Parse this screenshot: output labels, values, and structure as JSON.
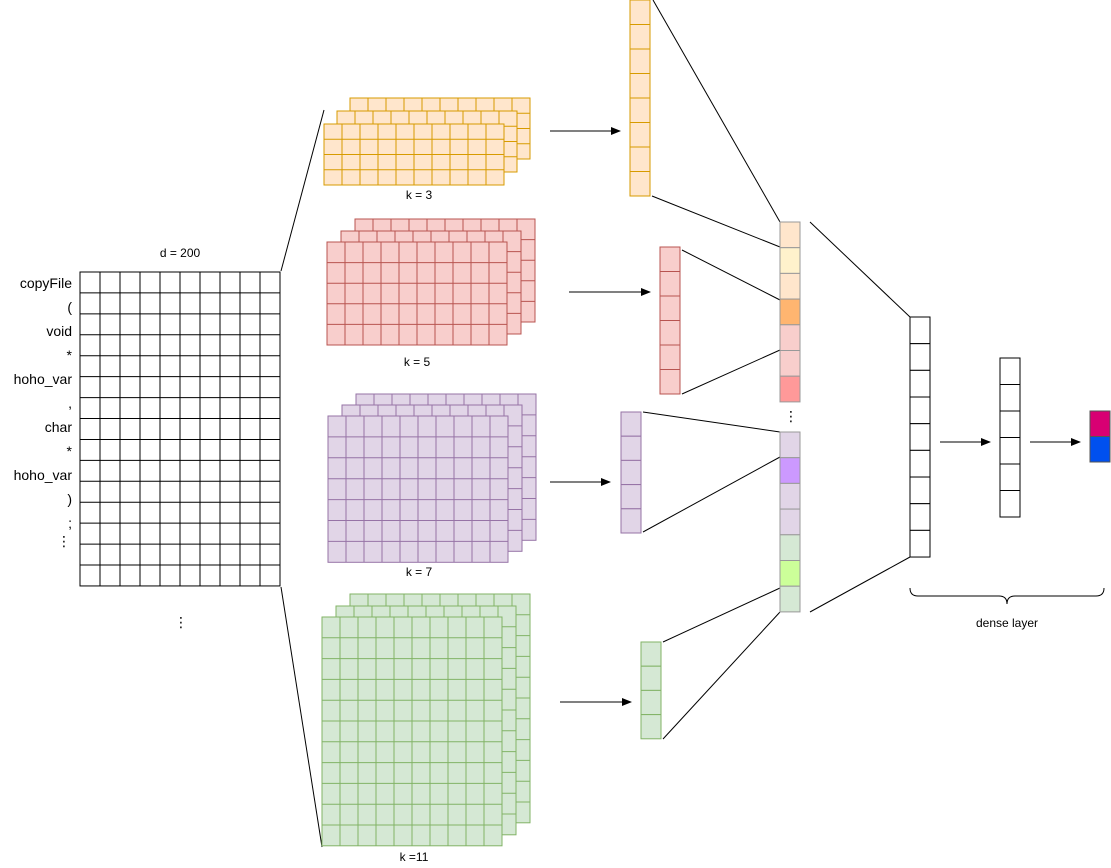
{
  "tokens": [
    "copyFile",
    "(",
    "void",
    "*",
    "hoho_var",
    ",",
    "char",
    "*",
    "hoho_var",
    ")",
    ";"
  ],
  "ellipsis": "⋮",
  "matrix_label": "d = 200",
  "dense_label": "dense layer",
  "branches": [
    {
      "label": "k = 3",
      "fill": "#FFE6CC",
      "stroke": "#D79B00"
    },
    {
      "label": "k = 5",
      "fill": "#F8CECC",
      "stroke": "#B85450"
    },
    {
      "label": "k = 7",
      "fill": "#E1D5E7",
      "stroke": "#9673A6"
    },
    {
      "label": "k =11",
      "fill": "#D5E8D4",
      "stroke": "#82B366"
    }
  ],
  "concat_fills": [
    "#FFE6CC",
    "#FFF2CC",
    "#FFE6CC",
    "#FFB570",
    "#F8CECC",
    "#F8CECC",
    "#FF9999",
    "#E1D5E7",
    "#CC99FF",
    "#E1D5E7",
    "#E1D5E7",
    "#D5E8D4",
    "#CCFF99",
    "#D5E8D4"
  ],
  "concat_stroke": "#999999",
  "output_colors": [
    "#D80073",
    "#0050EF"
  ]
}
